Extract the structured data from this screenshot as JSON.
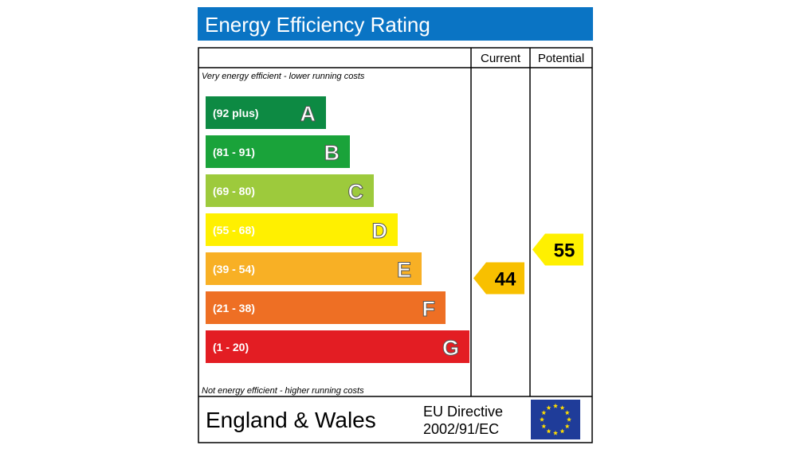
{
  "chart_data": {
    "type": "bar",
    "title": "Energy Efficiency Rating",
    "columns": [
      "Current",
      "Potential"
    ],
    "top_note": "Very energy efficient - lower running costs",
    "bottom_note": "Not energy efficient - higher running costs",
    "bands": [
      {
        "letter": "A",
        "range": "(92 plus)",
        "color": "#0d8a43"
      },
      {
        "letter": "B",
        "range": "(81 - 91)",
        "color": "#1aa33a"
      },
      {
        "letter": "C",
        "range": "(69 - 80)",
        "color": "#9dca3c"
      },
      {
        "letter": "D",
        "range": "(55 - 68)",
        "color": "#fff000"
      },
      {
        "letter": "E",
        "range": "(39 - 54)",
        "color": "#f8b025"
      },
      {
        "letter": "F",
        "range": "(21 - 38)",
        "color": "#ee6f24"
      },
      {
        "letter": "G",
        "range": "(1 - 20)",
        "color": "#e31d23"
      }
    ],
    "ratings": [
      {
        "column": "Current",
        "value": 44,
        "band": "E",
        "color": "#f8c000"
      },
      {
        "column": "Potential",
        "value": 55,
        "band": "D",
        "color": "#fff000"
      }
    ]
  },
  "footer": {
    "region": "England & Wales",
    "directive_line1": "EU Directive",
    "directive_line2": "2002/91/EC"
  },
  "colors": {
    "title_bar": "#0a74c4",
    "eu_flag": "#1f3c99",
    "eu_stars": "#ffdd00"
  }
}
